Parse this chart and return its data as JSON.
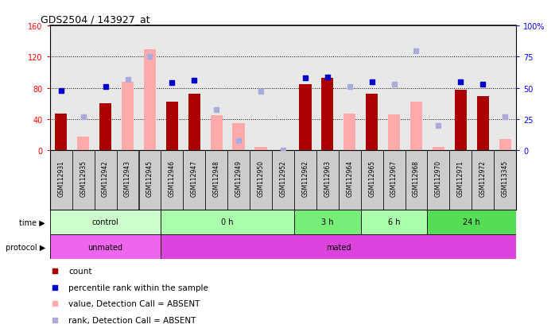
{
  "title": "GDS2504 / 143927_at",
  "samples": [
    "GSM112931",
    "GSM112935",
    "GSM112942",
    "GSM112943",
    "GSM112945",
    "GSM112946",
    "GSM112947",
    "GSM112948",
    "GSM112949",
    "GSM112950",
    "GSM112952",
    "GSM112962",
    "GSM112963",
    "GSM112964",
    "GSM112965",
    "GSM112967",
    "GSM112968",
    "GSM112970",
    "GSM112971",
    "GSM112972",
    "GSM113345"
  ],
  "count_absent": [
    false,
    true,
    false,
    true,
    true,
    false,
    false,
    true,
    true,
    true,
    true,
    false,
    false,
    true,
    false,
    true,
    true,
    true,
    false,
    false,
    true
  ],
  "count_values": [
    47,
    0,
    60,
    0,
    0,
    62,
    73,
    0,
    0,
    0,
    0,
    85,
    93,
    0,
    73,
    0,
    0,
    0,
    78,
    70,
    0
  ],
  "absent_values": [
    0,
    18,
    0,
    88,
    130,
    0,
    0,
    45,
    35,
    5,
    0,
    0,
    0,
    47,
    0,
    46,
    62,
    5,
    0,
    0,
    15
  ],
  "rank_present": [
    48,
    0,
    51,
    0,
    0,
    54,
    56,
    0,
    0,
    0,
    0,
    58,
    59,
    0,
    55,
    0,
    0,
    0,
    55,
    53,
    0
  ],
  "rank_absent": [
    0,
    27,
    0,
    57,
    75,
    0,
    0,
    33,
    8,
    47,
    0,
    0,
    0,
    51,
    0,
    53,
    80,
    20,
    0,
    0,
    27
  ],
  "time_groups": [
    {
      "label": "control",
      "start": 0,
      "end": 5,
      "color": "#ccffcc"
    },
    {
      "label": "0 h",
      "start": 5,
      "end": 11,
      "color": "#aaffaa"
    },
    {
      "label": "3 h",
      "start": 11,
      "end": 14,
      "color": "#77ee77"
    },
    {
      "label": "6 h",
      "start": 14,
      "end": 17,
      "color": "#aaffaa"
    },
    {
      "label": "24 h",
      "start": 17,
      "end": 21,
      "color": "#55dd55"
    }
  ],
  "protocol_groups": [
    {
      "label": "unmated",
      "start": 0,
      "end": 5,
      "color": "#ee66ee"
    },
    {
      "label": "mated",
      "start": 5,
      "end": 21,
      "color": "#dd44dd"
    }
  ],
  "ylim_left": [
    0,
    160
  ],
  "ylim_right": [
    0,
    100
  ],
  "yticks_left": [
    0,
    40,
    80,
    120,
    160
  ],
  "ytick_labels_left": [
    "0",
    "40",
    "80",
    "120",
    "160"
  ],
  "ytick_labels_right": [
    "0",
    "25",
    "50",
    "75",
    "100%"
  ],
  "bar_color_present": "#aa0000",
  "bar_color_absent": "#ffaaaa",
  "dot_color_present": "#0000cc",
  "dot_color_absent": "#aaaadd",
  "chart_bg": "#e8e8e8",
  "xlabel_bg": "#cccccc"
}
